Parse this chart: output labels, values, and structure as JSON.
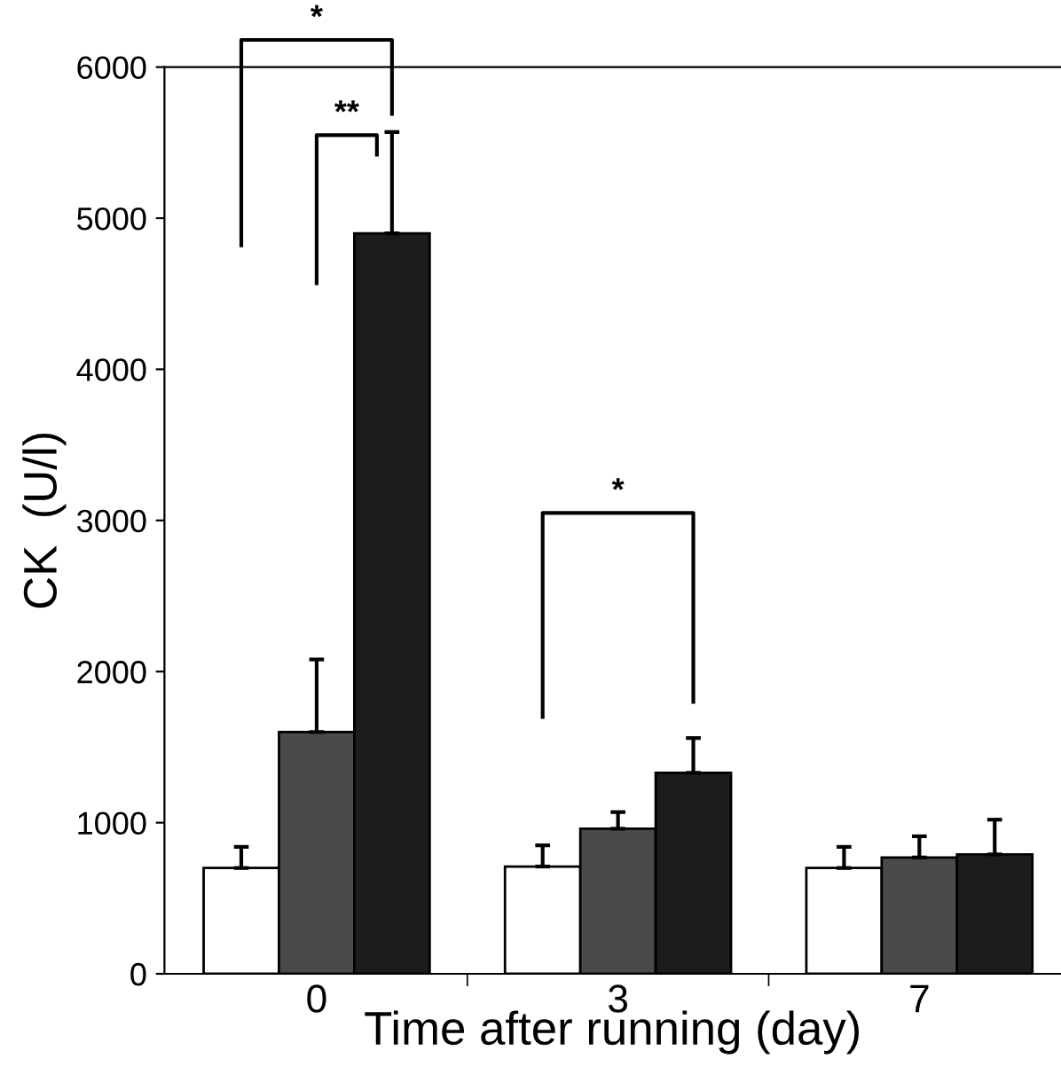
{
  "chart_data": {
    "type": "bar",
    "categories": [
      "0",
      "3",
      "7"
    ],
    "xlabel": "Time after running (day)",
    "ylabel": "CK  (U/l)",
    "ylim": [
      0,
      6000
    ],
    "yticks": [
      0,
      1000,
      2000,
      3000,
      4000,
      5000,
      6000
    ],
    "grid": false,
    "legend": false,
    "series": [
      {
        "color": "#ffffff",
        "values": [
          700,
          710,
          700
        ],
        "errors": [
          [
            700,
            840
          ],
          [
            710,
            850
          ],
          [
            700,
            840
          ]
        ]
      },
      {
        "color": "#4a4a4a",
        "values": [
          1600,
          960,
          770
        ],
        "errors": [
          [
            1600,
            2080
          ],
          [
            960,
            1070
          ],
          [
            770,
            910
          ]
        ]
      },
      {
        "color": "#1c1c1c",
        "values": [
          4900,
          1330,
          790
        ],
        "errors": [
          [
            4900,
            5570
          ],
          [
            1330,
            1560
          ],
          [
            790,
            1020
          ]
        ]
      }
    ],
    "annotations": [
      "*",
      "**",
      "*"
    ]
  }
}
